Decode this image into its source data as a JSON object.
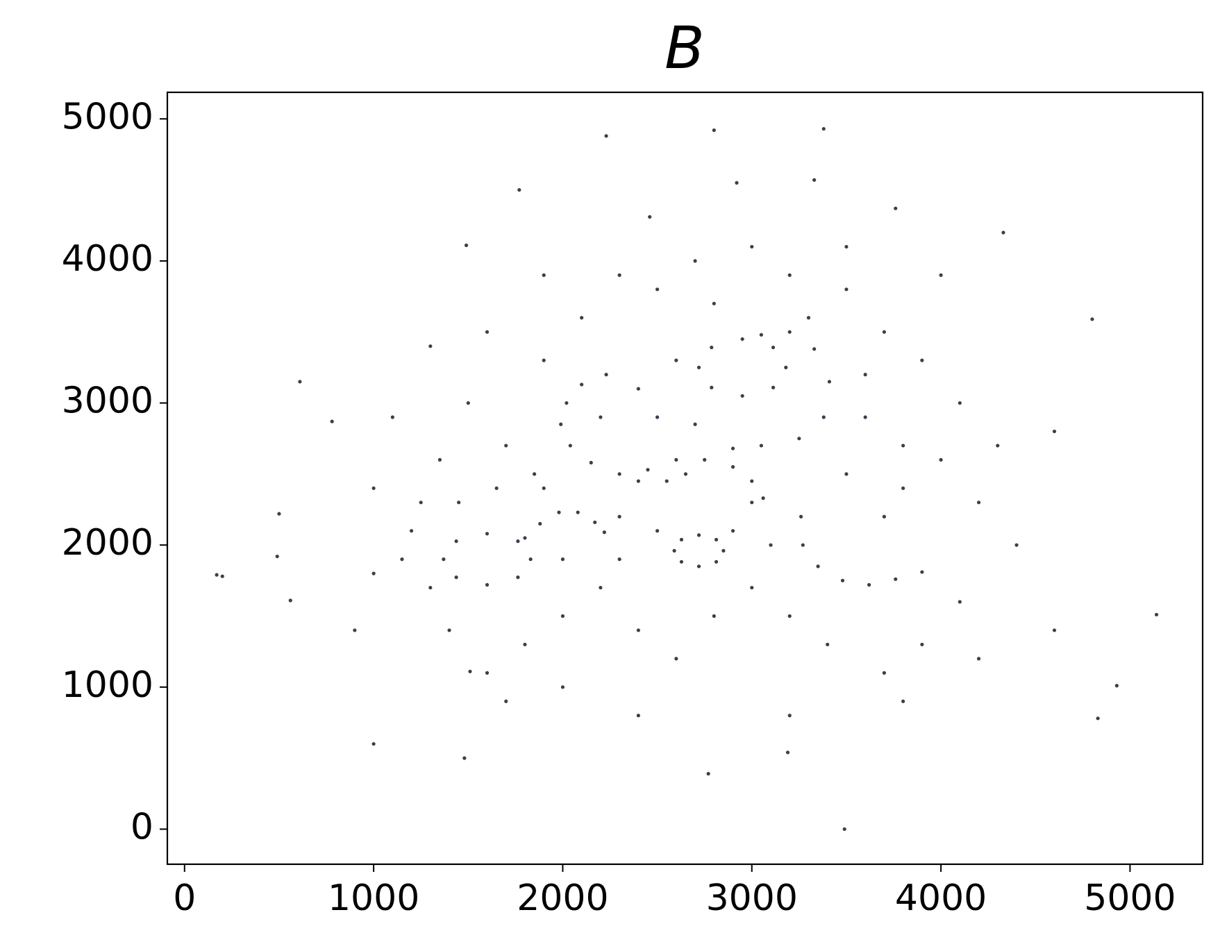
{
  "chart_data": {
    "type": "scatter",
    "title": "B",
    "color": "#1c1b2e",
    "x": [
      1830,
      1763,
      1600,
      1437,
      1370,
      1437,
      1600,
      1763,
      1800,
      1880,
      1980,
      2080,
      2170,
      2220,
      2230,
      2100,
      2020,
      1990,
      2040,
      2150,
      2300,
      2450,
      2600,
      2750,
      2900,
      3000,
      3060,
      3180,
      3113,
      2950,
      2787,
      2720,
      2787,
      2950,
      3113,
      3050,
      3200,
      3330,
      3410,
      3380,
      3250,
      3050,
      2900,
      2850,
      2720,
      2590,
      2720,
      2812,
      2628,
      2628,
      2812,
      3260,
      3270,
      3350,
      3480,
      3620,
      3760,
      3900,
      2400,
      2550,
      2650,
      1200,
      1350,
      1500,
      1700,
      1900,
      2100,
      2300,
      2500,
      2700,
      3000,
      3200,
      3500,
      3700,
      3900,
      4100,
      4000,
      3800,
      3600,
      3700,
      4200,
      4100,
      3900,
      3700,
      3400,
      3200,
      3000,
      2800,
      2600,
      2400,
      2200,
      2000,
      1800,
      1600,
      1400,
      1300,
      1150,
      1250,
      1450,
      1650,
      1850,
      2400,
      2600,
      2500,
      2700,
      2300,
      2500,
      2900,
      3100,
      3000,
      2300,
      2000,
      1900,
      3500,
      3600,
      3800,
      4300,
      4400,
      4600,
      900,
      1000,
      1100,
      1300,
      1600,
      1900,
      2200,
      2800,
      3300,
      3500,
      4000,
      4200,
      3800,
      3200,
      2400,
      2000,
      1700,
      170,
      200,
      500,
      490,
      560,
      610,
      780,
      1000,
      1480,
      1490,
      1770,
      2230,
      2800,
      3380,
      3490,
      5140,
      4930,
      4830,
      4800,
      4330,
      2770,
      3190,
      2920,
      3330,
      2460,
      3760,
      1510,
      1000,
      4600
    ],
    "values": [
      1900,
      2027,
      2080,
      2027,
      1900,
      1773,
      1720,
      1773,
      2050,
      2150,
      2230,
      2230,
      2160,
      2090,
      3200,
      3130,
      3000,
      2850,
      2700,
      2580,
      2500,
      2530,
      2600,
      2600,
      2550,
      2450,
      2330,
      3250,
      3391,
      3450,
      3391,
      3250,
      3109,
      3050,
      3109,
      3480,
      3500,
      3380,
      3150,
      2900,
      2750,
      2700,
      2680,
      1960,
      2070,
      1960,
      1850,
      2038,
      2038,
      1882,
      1882,
      2200,
      2000,
      1850,
      1750,
      1720,
      1760,
      1810,
      2450,
      2450,
      2500,
      2100,
      2600,
      3000,
      2700,
      3300,
      3600,
      3900,
      3800,
      4000,
      4100,
      3900,
      3800,
      3500,
      3300,
      3000,
      2600,
      2400,
      2900,
      2200,
      2300,
      1600,
      1300,
      1100,
      1300,
      1500,
      1700,
      1500,
      1200,
      1400,
      1700,
      1500,
      1300,
      1100,
      1400,
      1700,
      1900,
      2300,
      2300,
      2400,
      2500,
      3100,
      3300,
      2900,
      2850,
      2200,
      2100,
      2100,
      2000,
      2300,
      1900,
      1900,
      2400,
      2500,
      3200,
      2700,
      2700,
      2000,
      1400,
      1400,
      1800,
      2900,
      3400,
      3500,
      3900,
      2900,
      3700,
      3600,
      4100,
      3900,
      1200,
      900,
      800,
      800,
      1000,
      900,
      1790,
      1780,
      2220,
      1920,
      1610,
      3150,
      2870,
      600,
      500,
      4110,
      4500,
      4880,
      4920,
      4930,
      0,
      1510,
      1010,
      780,
      3590,
      4200,
      390,
      540,
      4550,
      4570,
      4310,
      4370,
      1110,
      2400,
      2800
    ],
    "xlim": [
      -91,
      5384
    ],
    "ylim": [
      -247,
      5187
    ],
    "xticks": [
      0,
      1000,
      2000,
      3000,
      4000,
      5000
    ],
    "yticks": [
      0,
      1000,
      2000,
      3000,
      4000,
      5000
    ]
  }
}
